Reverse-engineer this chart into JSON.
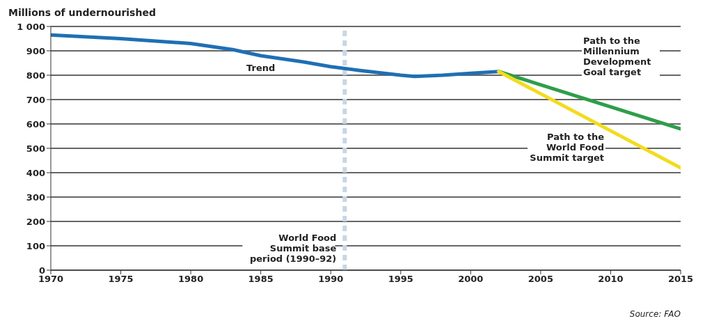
{
  "chart_data": {
    "type": "line",
    "ylabel": "Millions of undernourished",
    "xlim": [
      1970,
      2015
    ],
    "xticks": [
      1970,
      1975,
      1980,
      1985,
      1990,
      1995,
      2000,
      2005,
      2010,
      2015
    ],
    "ylim": [
      0,
      1000
    ],
    "yticks": [
      0,
      100,
      200,
      300,
      400,
      500,
      600,
      700,
      800,
      900,
      {
        "value": 1000,
        "label": "1 000"
      }
    ],
    "grid": "y",
    "series": [
      {
        "name": "Trend",
        "color": "#1f6fb4",
        "x": [
          1970,
          1975,
          1980,
          1983,
          1985,
          1988,
          1990,
          1992,
          1995,
          1996,
          1998,
          2000,
          2002
        ],
        "values": [
          965,
          950,
          930,
          905,
          880,
          855,
          835,
          820,
          800,
          795,
          800,
          808,
          815
        ]
      },
      {
        "name": "Path to the Millennium Development Goal target",
        "color": "#2e9e4a",
        "x": [
          2002,
          2015
        ],
        "values": [
          815,
          580
        ]
      },
      {
        "name": "Path to the World Food Summit target",
        "color": "#f2dc1e",
        "x": [
          2002,
          2015
        ],
        "values": [
          815,
          420
        ]
      }
    ],
    "ref_lines": [
      {
        "axis": "x",
        "value": 1991,
        "label": "World Food Summit base period (1990–92)",
        "color": "#c6d7e6",
        "line_style": "dashed"
      }
    ],
    "annotations": [
      "Source: FAO"
    ]
  }
}
